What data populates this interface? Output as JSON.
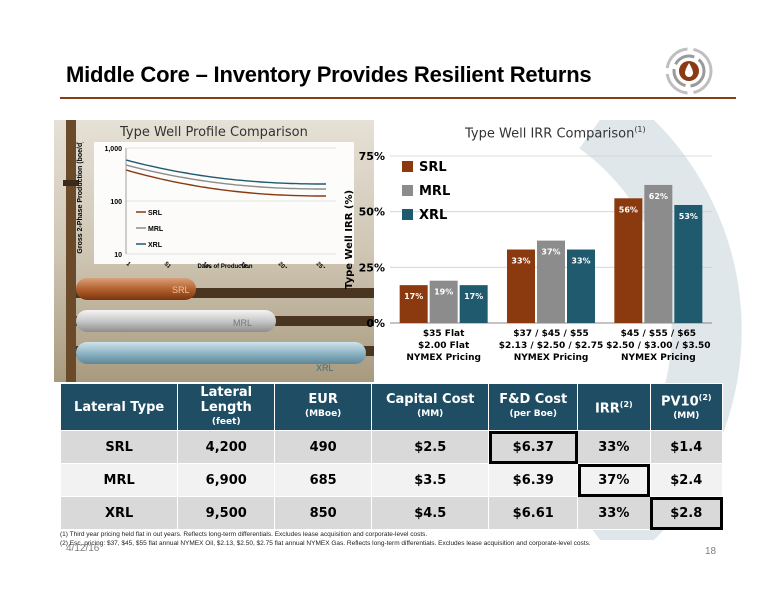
{
  "title": "Middle Core – Inventory Provides Resilient Returns",
  "colors": {
    "srl": "#8b3a0f",
    "mrl": "#8c8c8c",
    "xrl": "#1f5a6e",
    "header": "#1f4e64",
    "accent": "#8a3b12"
  },
  "type_well_profile": {
    "title": "Type Well Profile Comparison",
    "ylabel": "Gross 2-Phase Production (boe/d)",
    "xlabel": "Days of Production",
    "y_ticks": [
      "1,000",
      "100",
      "10"
    ],
    "x_ticks": [
      "1",
      "51",
      "101",
      "151",
      "201",
      "251"
    ],
    "legend": [
      "SRL",
      "MRL",
      "XRL"
    ],
    "pipe_labels": [
      "SRL",
      "MRL",
      "XRL"
    ]
  },
  "chart_data": {
    "type": "bar",
    "title": "Type Well IRR Comparison",
    "title_sup": "(1)",
    "ylabel": "Type Well IRR (%)",
    "ylim": [
      0,
      75
    ],
    "y_ticks": [
      "0%",
      "25%",
      "50%",
      "75%"
    ],
    "categories": [
      [
        "$35 Flat",
        "$2.00 Flat",
        "NYMEX Pricing"
      ],
      [
        "$37 / $45 / $55",
        "$2.13 / $2.50 / $2.75",
        "NYMEX Pricing"
      ],
      [
        "$45 / $55 / $65",
        "$2.50 / $3.00 / $3.50",
        "NYMEX Pricing"
      ]
    ],
    "series": [
      {
        "name": "SRL",
        "values": [
          17,
          33,
          56
        ],
        "labels": [
          "17%",
          "33%",
          "56%"
        ]
      },
      {
        "name": "MRL",
        "values": [
          19,
          37,
          62
        ],
        "labels": [
          "19%",
          "37%",
          "62%"
        ]
      },
      {
        "name": "XRL",
        "values": [
          17,
          33,
          53
        ],
        "labels": [
          "17%",
          "33%",
          "53%"
        ]
      }
    ],
    "legend_position": "top-left"
  },
  "table": {
    "headers": [
      {
        "label": "Lateral Type",
        "sub": ""
      },
      {
        "label": "Lateral Length",
        "sub": "(feet)"
      },
      {
        "label": "EUR",
        "sub": "(MBoe)"
      },
      {
        "label": "Capital Cost",
        "sub": "(MM)"
      },
      {
        "label": "F&D Cost",
        "sub": "(per Boe)"
      },
      {
        "label": "IRR",
        "sub": "",
        "sup": "(2)"
      },
      {
        "label": "PV10",
        "sub": "(MM)",
        "sup": "(2)"
      }
    ],
    "rows": [
      [
        "SRL",
        "4,200",
        "490",
        "$2.5",
        "$6.37",
        "33%",
        "$1.4"
      ],
      [
        "MRL",
        "6,900",
        "685",
        "$3.5",
        "$6.39",
        "37%",
        "$2.4"
      ],
      [
        "XRL",
        "9,500",
        "850",
        "$4.5",
        "$6.61",
        "33%",
        "$2.8"
      ]
    ]
  },
  "footnotes": [
    "(1)    Third year pricing held flat in out years.  Reflects long-term differentials. Excludes lease acquisition and corporate-level costs.",
    "(2)    Esc. pricing: $37, $45, $55 flat annual NYMEX Oil, $2.13, $2.50, $2.75 flat annual NYMEX Gas.  Reflects long-term differentials. Excludes lease acquisition and corporate-level costs."
  ],
  "date": "4/12/16",
  "page_number": "18"
}
